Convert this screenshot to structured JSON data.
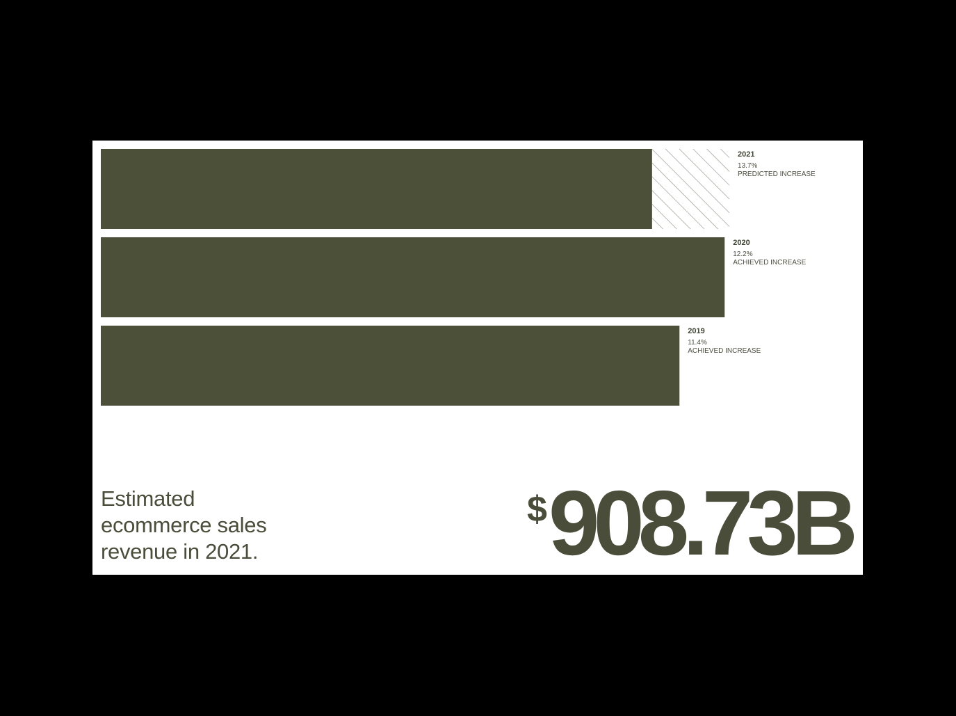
{
  "colors": {
    "bar": "#4d5039",
    "text": "#4a4d3a",
    "background": "#ffffff",
    "frame": "#000000",
    "hatch": "#8a8d80"
  },
  "chart_data": {
    "type": "bar",
    "orientation": "horizontal",
    "bars": [
      {
        "year": "2021",
        "pct": "13.7%",
        "desc": "PREDICTED INCREASE",
        "relative_length": 0.932,
        "achieved_fraction": 0.877,
        "predicted": true
      },
      {
        "year": "2020",
        "pct": "12.2%",
        "desc": "ACHIEVED INCREASE",
        "relative_length": 0.925,
        "achieved_fraction": 1.0,
        "predicted": false
      },
      {
        "year": "2019",
        "pct": "11.4%",
        "desc": "ACHIEVED INCREASE",
        "relative_length": 0.858,
        "achieved_fraction": 1.0,
        "predicted": false
      }
    ]
  },
  "caption": {
    "line1": "Estimated",
    "line2": "ecommerce sales",
    "line3": "revenue in 2021."
  },
  "headline": {
    "currency": "$",
    "amount": "908.73B"
  }
}
